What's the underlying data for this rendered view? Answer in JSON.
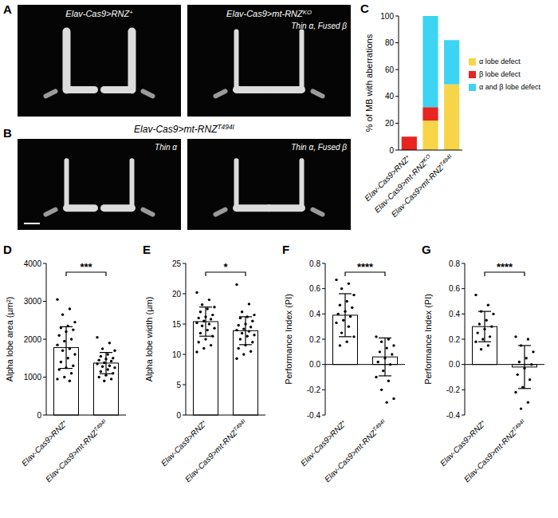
{
  "images": [
    {
      "panel": "A",
      "tiles": [
        {
          "title": "Elav-Cas9>RNZ+"
        },
        {
          "title": "Elav-Cas9>mt-RNZKO",
          "note": "Thin α, Fused β"
        }
      ]
    },
    {
      "panel": "B",
      "title": "Elav-Cas9>mt-RNZT494I",
      "tiles": [
        {
          "note": "Thin α"
        },
        {
          "note": "Thin α, Fused β"
        }
      ]
    }
  ],
  "chart_data": [
    {
      "panel": "C",
      "type": "bar",
      "stacked": true,
      "legend": "right",
      "grid": false,
      "categories": [
        "Elav-Cas9>RNZ+",
        "Elav-Cas9>mt-RNZKO",
        "Elav-Cas9>mt-RNZT494I"
      ],
      "y_label": "% of MB with aberrations",
      "ylim": [
        0,
        100
      ],
      "yticks": [
        0,
        20,
        40,
        60,
        80,
        100
      ],
      "series": [
        {
          "name": "α lobe defect",
          "color": "#f8d548",
          "values": [
            0,
            22,
            49
          ]
        },
        {
          "name": "β lobe defect",
          "color": "#e8241f",
          "values": [
            10,
            10,
            0
          ]
        },
        {
          "name": "α and β lobe defect",
          "color": "#3dd4f4",
          "values": [
            0,
            68,
            33
          ]
        }
      ]
    },
    {
      "panel": "D",
      "type": "bar",
      "grid": false,
      "categories": [
        "Elav-Cas9>RNZ+",
        "Elav-Cas9>mt-RNZT494I"
      ],
      "y_label": "Alpha lobe area (µm²)",
      "ylim": [
        0,
        4000
      ],
      "yticks": [
        0,
        1000,
        2000,
        3000,
        4000
      ],
      "values": [
        1780,
        1370
      ],
      "errors": [
        550,
        280
      ],
      "annotation": "***",
      "points": [
        [
          3050,
          2800,
          2650,
          2450,
          2350,
          2300,
          2250,
          2200,
          2100,
          2000,
          1950,
          1850,
          1750,
          1700,
          1600,
          1500,
          1400,
          1300,
          1250,
          1200,
          1100,
          1000,
          950,
          900
        ],
        [
          2050,
          1900,
          1750,
          1700,
          1600,
          1550,
          1500,
          1480,
          1450,
          1420,
          1380,
          1350,
          1300,
          1280,
          1250,
          1200,
          1150,
          1100,
          1050,
          1000,
          950,
          900
        ]
      ]
    },
    {
      "panel": "E",
      "type": "bar",
      "grid": false,
      "categories": [
        "Elav-Cas9>RNZ+",
        "Elav-Cas9>mt-RNZT494I"
      ],
      "y_label": "Alpha lobe width (µm)",
      "ylim": [
        0,
        25
      ],
      "yticks": [
        0,
        5,
        10,
        15,
        20,
        25
      ],
      "values": [
        15.4,
        13.9
      ],
      "errors": [
        2.4,
        2.3
      ],
      "annotation": "*",
      "points": [
        [
          20.2,
          19.0,
          18.2,
          17.8,
          17.5,
          17.0,
          16.5,
          16.2,
          16.0,
          15.8,
          15.5,
          15.2,
          15.0,
          14.7,
          14.3,
          14.0,
          13.5,
          13.0,
          12.5,
          12.0,
          11.5,
          11.0,
          10.4
        ],
        [
          21.5,
          18.3,
          17.0,
          16.5,
          16.2,
          16.0,
          15.5,
          15.0,
          14.8,
          14.5,
          14.2,
          14.0,
          13.8,
          13.5,
          13.2,
          13.0,
          12.5,
          12.0,
          11.5,
          11.0,
          10.5,
          10.0,
          9.3
        ]
      ]
    },
    {
      "panel": "F",
      "type": "bar",
      "grid": false,
      "categories": [
        "Elav-Cas9>RNZ+",
        "Elav-Cas9>mt-RNZT494I"
      ],
      "y_label": "Performance Index (PI)",
      "ylim": [
        -0.4,
        0.8
      ],
      "yticks": [
        -0.4,
        -0.2,
        {
          "value": 0,
          "label": "0.0"
        },
        0.2,
        0.4,
        0.6,
        0.8
      ],
      "values": [
        0.39,
        0.06
      ],
      "errors": [
        0.17,
        0.15
      ],
      "annotation": "****",
      "points": [
        [
          0.67,
          0.64,
          0.6,
          0.55,
          0.5,
          0.47,
          0.45,
          0.42,
          0.4,
          0.38,
          0.35,
          0.33,
          0.3,
          0.25,
          0.22,
          0.18,
          0.15
        ],
        [
          0.22,
          0.2,
          0.18,
          0.15,
          0.13,
          0.1,
          0.08,
          0.05,
          0.02,
          0.0,
          -0.05,
          -0.1,
          -0.13,
          -0.2,
          -0.27,
          -0.3
        ]
      ]
    },
    {
      "panel": "G",
      "type": "bar",
      "grid": false,
      "categories": [
        "Elav-Cas9>RNZ+",
        "Elav-Cas9>mt-RNZT494I"
      ],
      "y_label": "Performance Index (PI)",
      "ylim": [
        -0.4,
        0.8
      ],
      "yticks": [
        -0.4,
        -0.2,
        {
          "value": 0,
          "label": "0.0"
        },
        0.2,
        0.4,
        0.6,
        0.8
      ],
      "values": [
        0.3,
        -0.02
      ],
      "errors": [
        0.12,
        0.17
      ],
      "annotation": "****",
      "points": [
        [
          0.55,
          0.47,
          0.42,
          0.4,
          0.35,
          0.32,
          0.3,
          0.28,
          0.25,
          0.22,
          0.2,
          0.18,
          0.15,
          0.12
        ],
        [
          0.22,
          0.2,
          0.15,
          0.1,
          0.05,
          0.02,
          0,
          -0.03,
          -0.08,
          -0.12,
          -0.18,
          -0.22,
          -0.3,
          -0.35
        ]
      ]
    }
  ]
}
